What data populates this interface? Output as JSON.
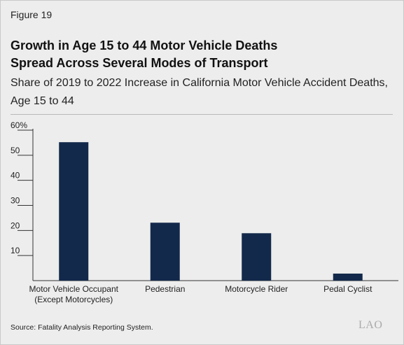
{
  "figure_label": "Figure 19",
  "title_lines": [
    "Growth in Age 15 to 44 Motor Vehicle Deaths",
    "Spread Across Several Modes of Transport"
  ],
  "subtitle": "Share of 2019 to 2022 Increase in California Motor Vehicle Accident Deaths, Age 15 to 44",
  "source": "Source: Fatality Analysis Reporting System.",
  "logo_text": "LAO",
  "colors": {
    "bar": "#13294b",
    "background": "#ecedec"
  },
  "chart_data": {
    "type": "bar",
    "categories": [
      [
        "Motor Vehicle Occupant",
        "(Except Motorcycles)"
      ],
      [
        "Pedestrian"
      ],
      [
        "Motorcycle Rider"
      ],
      [
        "Pedal Cyclist"
      ]
    ],
    "values": [
      55.2,
      23.1,
      18.9,
      2.8
    ],
    "ylim": [
      0,
      60
    ],
    "yticks": [
      10,
      20,
      30,
      40,
      50,
      60
    ],
    "ytick_labels": [
      "10",
      "20",
      "30",
      "40",
      "50",
      "60%"
    ],
    "grid": false,
    "legend": "none"
  }
}
